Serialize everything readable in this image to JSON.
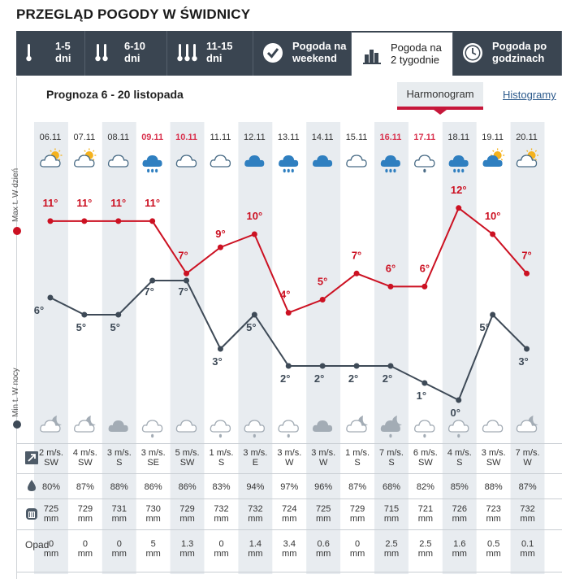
{
  "page": {
    "title": "PRZEGLĄD POGODY W ŚWIDNICY"
  },
  "tabs": [
    {
      "label": "1-5\ndni",
      "icon": "thermometer-1-icon",
      "active": false
    },
    {
      "label": "6-10\ndni",
      "icon": "thermometer-2-icon",
      "active": false
    },
    {
      "label": "11-15\ndni",
      "icon": "thermometer-3-icon",
      "active": false
    },
    {
      "label": "Pogoda na\nweekend",
      "icon": "checkmark-circle-icon",
      "active": false
    },
    {
      "label": "Pogoda na\n2 tygodnie",
      "icon": "bar-chart-icon",
      "active": true
    },
    {
      "label": "Pogoda po\ngodzinach",
      "icon": "clock-icon",
      "active": false
    }
  ],
  "forecast": {
    "subtitle": "Prognoza 6 - 20 listopada",
    "view_active": "Harmonogram",
    "view_other": "Histogramy",
    "legend_max": "Max t. W dzień",
    "legend_min": "Min t. W nocy",
    "colors": {
      "max": "#cc1122",
      "min": "#3e4a57",
      "weekend": "#d9334f",
      "stripe": "#e8ecf0"
    },
    "days": [
      {
        "date": "06.11",
        "weekend": false,
        "day_icon": "sun-cloud-icon",
        "night_icon": "moon-cloud-icon"
      },
      {
        "date": "07.11",
        "weekend": false,
        "day_icon": "sun-cloud-icon",
        "night_icon": "moon-cloud-icon"
      },
      {
        "date": "08.11",
        "weekend": false,
        "day_icon": "cloud-icon",
        "night_icon": "dark-cloud-icon"
      },
      {
        "date": "09.11",
        "weekend": true,
        "day_icon": "rain-cloud-icon",
        "night_icon": "rain-cloud-light-icon"
      },
      {
        "date": "10.11",
        "weekend": true,
        "day_icon": "cloud-icon",
        "night_icon": "cloud-icon"
      },
      {
        "date": "11.11",
        "weekend": false,
        "day_icon": "cloud-icon",
        "night_icon": "rain-cloud-light-icon"
      },
      {
        "date": "12.11",
        "weekend": false,
        "day_icon": "dark-cloud-icon",
        "night_icon": "rain-cloud-light-icon"
      },
      {
        "date": "13.11",
        "weekend": false,
        "day_icon": "rain-cloud-icon",
        "night_icon": "rain-cloud-light-icon"
      },
      {
        "date": "14.11",
        "weekend": false,
        "day_icon": "dark-cloud-icon",
        "night_icon": "dark-cloud-icon"
      },
      {
        "date": "15.11",
        "weekend": false,
        "day_icon": "cloud-icon",
        "night_icon": "moon-cloud-icon"
      },
      {
        "date": "16.11",
        "weekend": true,
        "day_icon": "rain-cloud-icon",
        "night_icon": "moon-rain-cloud-icon"
      },
      {
        "date": "17.11",
        "weekend": true,
        "day_icon": "rain-cloud-light-icon",
        "night_icon": "rain-cloud-light-icon"
      },
      {
        "date": "18.11",
        "weekend": false,
        "day_icon": "rain-cloud-icon",
        "night_icon": "rain-cloud-light-icon"
      },
      {
        "date": "19.11",
        "weekend": false,
        "day_icon": "sun-cloud-dark-icon",
        "night_icon": "cloud-icon"
      },
      {
        "date": "20.11",
        "weekend": false,
        "day_icon": "sun-cloud-icon",
        "night_icon": "moon-cloud-icon"
      }
    ]
  },
  "chart_data": {
    "type": "line",
    "categories": [
      "06.11",
      "07.11",
      "08.11",
      "09.11",
      "10.11",
      "11.11",
      "12.11",
      "13.11",
      "14.11",
      "15.11",
      "16.11",
      "17.11",
      "18.11",
      "19.11",
      "20.11"
    ],
    "series": [
      {
        "name": "Max t. W dzień",
        "values": [
          11,
          11,
          11,
          11,
          7,
          9,
          10,
          4,
          5,
          7,
          6,
          6,
          12,
          10,
          7
        ]
      },
      {
        "name": "Min t. W nocy",
        "values": [
          6,
          5,
          5,
          7,
          7,
          3,
          5,
          2,
          2,
          2,
          2,
          1,
          0,
          5,
          3
        ]
      }
    ],
    "unit": "°",
    "ylim": [
      0,
      12
    ]
  },
  "table": {
    "wind": [
      [
        "2 m/s.",
        "SW"
      ],
      [
        "4 m/s.",
        "SW"
      ],
      [
        "3 m/s.",
        "S"
      ],
      [
        "3 m/s.",
        "SE"
      ],
      [
        "5 m/s.",
        "SW"
      ],
      [
        "1 m/s.",
        "S"
      ],
      [
        "3 m/s.",
        "E"
      ],
      [
        "3 m/s.",
        "W"
      ],
      [
        "3 m/s.",
        "W"
      ],
      [
        "1 m/s.",
        "S"
      ],
      [
        "7 m/s.",
        "S"
      ],
      [
        "6 m/s.",
        "SW"
      ],
      [
        "4 m/s.",
        "S"
      ],
      [
        "3 m/s.",
        "SW"
      ],
      [
        "7 m/s.",
        "W"
      ]
    ],
    "humidity": [
      "80%",
      "87%",
      "88%",
      "86%",
      "86%",
      "83%",
      "94%",
      "97%",
      "96%",
      "87%",
      "68%",
      "82%",
      "85%",
      "88%",
      "87%"
    ],
    "pressure": [
      [
        "725",
        "mm"
      ],
      [
        "729",
        "mm"
      ],
      [
        "731",
        "mm"
      ],
      [
        "730",
        "mm"
      ],
      [
        "729",
        "mm"
      ],
      [
        "732",
        "mm"
      ],
      [
        "732",
        "mm"
      ],
      [
        "724",
        "mm"
      ],
      [
        "725",
        "mm"
      ],
      [
        "729",
        "mm"
      ],
      [
        "715",
        "mm"
      ],
      [
        "721",
        "mm"
      ],
      [
        "726",
        "mm"
      ],
      [
        "723",
        "mm"
      ],
      [
        "732",
        "mm"
      ]
    ],
    "precip_label": "Opad",
    "precip": [
      [
        "0",
        "mm"
      ],
      [
        "0",
        "mm"
      ],
      [
        "0",
        "mm"
      ],
      [
        "5",
        "mm"
      ],
      [
        "1.3",
        "mm"
      ],
      [
        "0",
        "mm"
      ],
      [
        "1.4",
        "mm"
      ],
      [
        "3.4",
        "mm"
      ],
      [
        "0.6",
        "mm"
      ],
      [
        "0",
        "mm"
      ],
      [
        "2.5",
        "mm"
      ],
      [
        "2.5",
        "mm"
      ],
      [
        "1.6",
        "mm"
      ],
      [
        "0.5",
        "mm"
      ],
      [
        "0.1",
        "mm"
      ]
    ]
  }
}
